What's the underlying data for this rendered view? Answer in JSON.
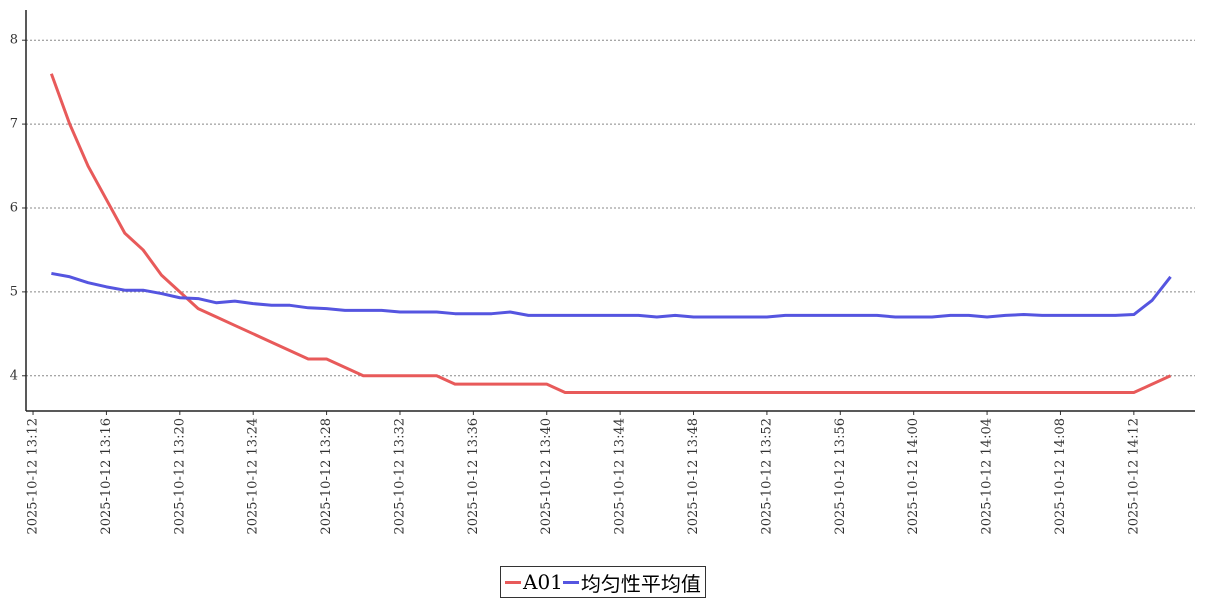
{
  "chart_data": {
    "type": "line",
    "x": [
      "2025-10-12 13:13",
      "2025-10-12 13:14",
      "2025-10-12 13:15",
      "2025-10-12 13:16",
      "2025-10-12 13:17",
      "2025-10-12 13:18",
      "2025-10-12 13:19",
      "2025-10-12 13:20",
      "2025-10-12 13:21",
      "2025-10-12 13:22",
      "2025-10-12 13:23",
      "2025-10-12 13:24",
      "2025-10-12 13:25",
      "2025-10-12 13:26",
      "2025-10-12 13:27",
      "2025-10-12 13:28",
      "2025-10-12 13:29",
      "2025-10-12 13:30",
      "2025-10-12 13:31",
      "2025-10-12 13:32",
      "2025-10-12 13:33",
      "2025-10-12 13:34",
      "2025-10-12 13:35",
      "2025-10-12 13:36",
      "2025-10-12 13:37",
      "2025-10-12 13:38",
      "2025-10-12 13:39",
      "2025-10-12 13:40",
      "2025-10-12 13:41",
      "2025-10-12 13:42",
      "2025-10-12 13:43",
      "2025-10-12 13:44",
      "2025-10-12 13:45",
      "2025-10-12 13:46",
      "2025-10-12 13:47",
      "2025-10-12 13:48",
      "2025-10-12 13:49",
      "2025-10-12 13:50",
      "2025-10-12 13:51",
      "2025-10-12 13:52",
      "2025-10-12 13:53",
      "2025-10-12 13:54",
      "2025-10-12 13:55",
      "2025-10-12 13:56",
      "2025-10-12 13:57",
      "2025-10-12 13:58",
      "2025-10-12 13:59",
      "2025-10-12 14:00",
      "2025-10-12 14:01",
      "2025-10-12 14:02",
      "2025-10-12 14:03",
      "2025-10-12 14:04",
      "2025-10-12 14:05",
      "2025-10-12 14:06",
      "2025-10-12 14:07",
      "2025-10-12 14:08",
      "2025-10-12 14:09",
      "2025-10-12 14:10",
      "2025-10-12 14:11",
      "2025-10-12 14:12",
      "2025-10-12 14:13",
      "2025-10-12 14:14"
    ],
    "series": [
      {
        "name": "A01",
        "color": "#e85a5a",
        "values": [
          7.6,
          7.0,
          6.5,
          6.1,
          5.7,
          5.5,
          5.2,
          5.0,
          4.8,
          4.7,
          4.6,
          4.5,
          4.4,
          4.3,
          4.2,
          4.2,
          4.1,
          4.0,
          4.0,
          4.0,
          4.0,
          4.0,
          3.9,
          3.9,
          3.9,
          3.9,
          3.9,
          3.9,
          3.8,
          3.8,
          3.8,
          3.8,
          3.8,
          3.8,
          3.8,
          3.8,
          3.8,
          3.8,
          3.8,
          3.8,
          3.8,
          3.8,
          3.8,
          3.8,
          3.8,
          3.8,
          3.8,
          3.8,
          3.8,
          3.8,
          3.8,
          3.8,
          3.8,
          3.8,
          3.8,
          3.8,
          3.8,
          3.8,
          3.8,
          3.8,
          3.9,
          4.0
        ]
      },
      {
        "name": "均匀性平均值",
        "color": "#5555e0",
        "values": [
          5.22,
          5.18,
          5.11,
          5.06,
          5.02,
          5.02,
          4.98,
          4.93,
          4.92,
          4.87,
          4.89,
          4.86,
          4.84,
          4.84,
          4.81,
          4.8,
          4.78,
          4.78,
          4.78,
          4.76,
          4.76,
          4.76,
          4.74,
          4.74,
          4.74,
          4.76,
          4.72,
          4.72,
          4.72,
          4.72,
          4.72,
          4.72,
          4.72,
          4.7,
          4.72,
          4.7,
          4.7,
          4.7,
          4.7,
          4.7,
          4.72,
          4.72,
          4.72,
          4.72,
          4.72,
          4.72,
          4.7,
          4.7,
          4.7,
          4.72,
          4.72,
          4.7,
          4.72,
          4.73,
          4.72,
          4.72,
          4.72,
          4.72,
          4.72,
          4.73,
          4.9,
          5.18
        ]
      }
    ],
    "xlim": [
      "2025-10-12 13:11:37",
      "2025-10-12 14:15:20"
    ],
    "xticks": [
      "2025-10-12 13:12",
      "2025-10-12 13:16",
      "2025-10-12 13:20",
      "2025-10-12 13:24",
      "2025-10-12 13:28",
      "2025-10-12 13:32",
      "2025-10-12 13:36",
      "2025-10-12 13:40",
      "2025-10-12 13:44",
      "2025-10-12 13:48",
      "2025-10-12 13:52",
      "2025-10-12 13:56",
      "2025-10-12 14:00",
      "2025-10-12 14:04",
      "2025-10-12 14:08",
      "2025-10-12 14:12"
    ],
    "ylim": [
      3.58,
      8.36
    ],
    "yticks": [
      4,
      5,
      6,
      7,
      8
    ],
    "grid": true,
    "legend": "bottom"
  }
}
